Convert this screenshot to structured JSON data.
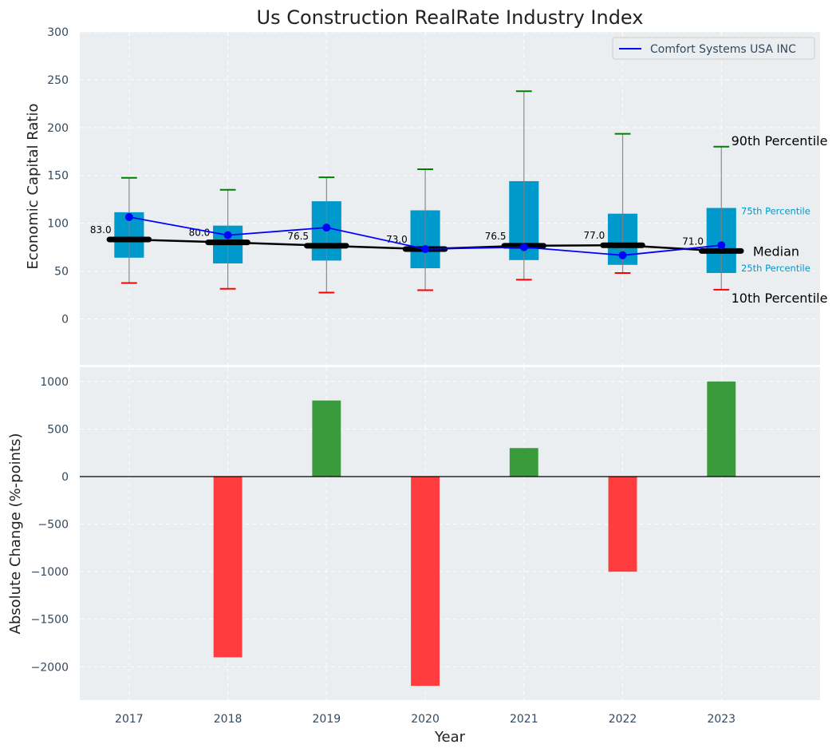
{
  "chart_data": [
    {
      "type": "box",
      "title": "Us Construction RealRate Industry Index",
      "xlabel": "",
      "ylabel": "Economic Capital Ratio",
      "ylim": [
        -48,
        300
      ],
      "xlim": [
        2016.5,
        2024
      ],
      "grid": true,
      "yticks": [
        0,
        50,
        100,
        150,
        200,
        250,
        300
      ],
      "categories": [
        2017,
        2018,
        2019,
        2020,
        2021,
        2022,
        2023
      ],
      "percentiles": {
        "p10": [
          37.5,
          31.5,
          27.5,
          30,
          41,
          48,
          30.5
        ],
        "p25": [
          64,
          58,
          61,
          53,
          61.5,
          56.5,
          48
        ],
        "median": [
          83.0,
          80.0,
          76.5,
          73.0,
          76.5,
          77.0,
          71.0
        ],
        "p75": [
          111.5,
          97.5,
          123,
          113.5,
          144,
          110,
          116
        ],
        "p90": [
          147.5,
          135,
          148,
          156.5,
          238,
          193.5,
          180
        ]
      },
      "median_labels": [
        "83.0",
        "80.0",
        "76.5",
        "73.0",
        "76.5",
        "77.0",
        "71.0"
      ],
      "series": [
        {
          "name": "Comfort Systems USA INC",
          "values": [
            106.5,
            87.5,
            95.5,
            73,
            75,
            66.5,
            77
          ],
          "color": "#0000ff"
        }
      ],
      "legend": {
        "position": "top-right",
        "entries": [
          "Comfort Systems USA INC"
        ]
      },
      "annotations": {
        "p90": "90th Percentile",
        "p75": "75th Percentile",
        "median": "Median",
        "p25": "25th Percentile",
        "p10": "10th Percentile"
      },
      "colors": {
        "box": "#0099cc",
        "median": "#000000",
        "p90_cap": "#008000",
        "p10_cap": "#ff0000",
        "whisker": "#808080",
        "percentile_label": "#0099cc",
        "background": "#eaeef0"
      }
    },
    {
      "type": "bar",
      "xlabel": "Year",
      "ylabel": "Absolute Change (%-points)",
      "ylim": [
        -2350,
        1150
      ],
      "xlim": [
        2016.5,
        2024
      ],
      "grid": true,
      "yticks": [
        -2000,
        -1500,
        -1000,
        -500,
        0,
        500,
        1000
      ],
      "ytick_labels": [
        "−2000",
        "−1500",
        "−1000",
        "−500",
        "0",
        "500",
        "1000"
      ],
      "categories": [
        2017,
        2018,
        2019,
        2020,
        2021,
        2022,
        2023
      ],
      "values": [
        0,
        -1900,
        800,
        -2200,
        300,
        -1000,
        1000
      ],
      "colors": {
        "positive": "#3a9b3c",
        "negative": "#ff3d3f",
        "zero_line": "#000000",
        "background": "#eaeef0"
      }
    }
  ]
}
